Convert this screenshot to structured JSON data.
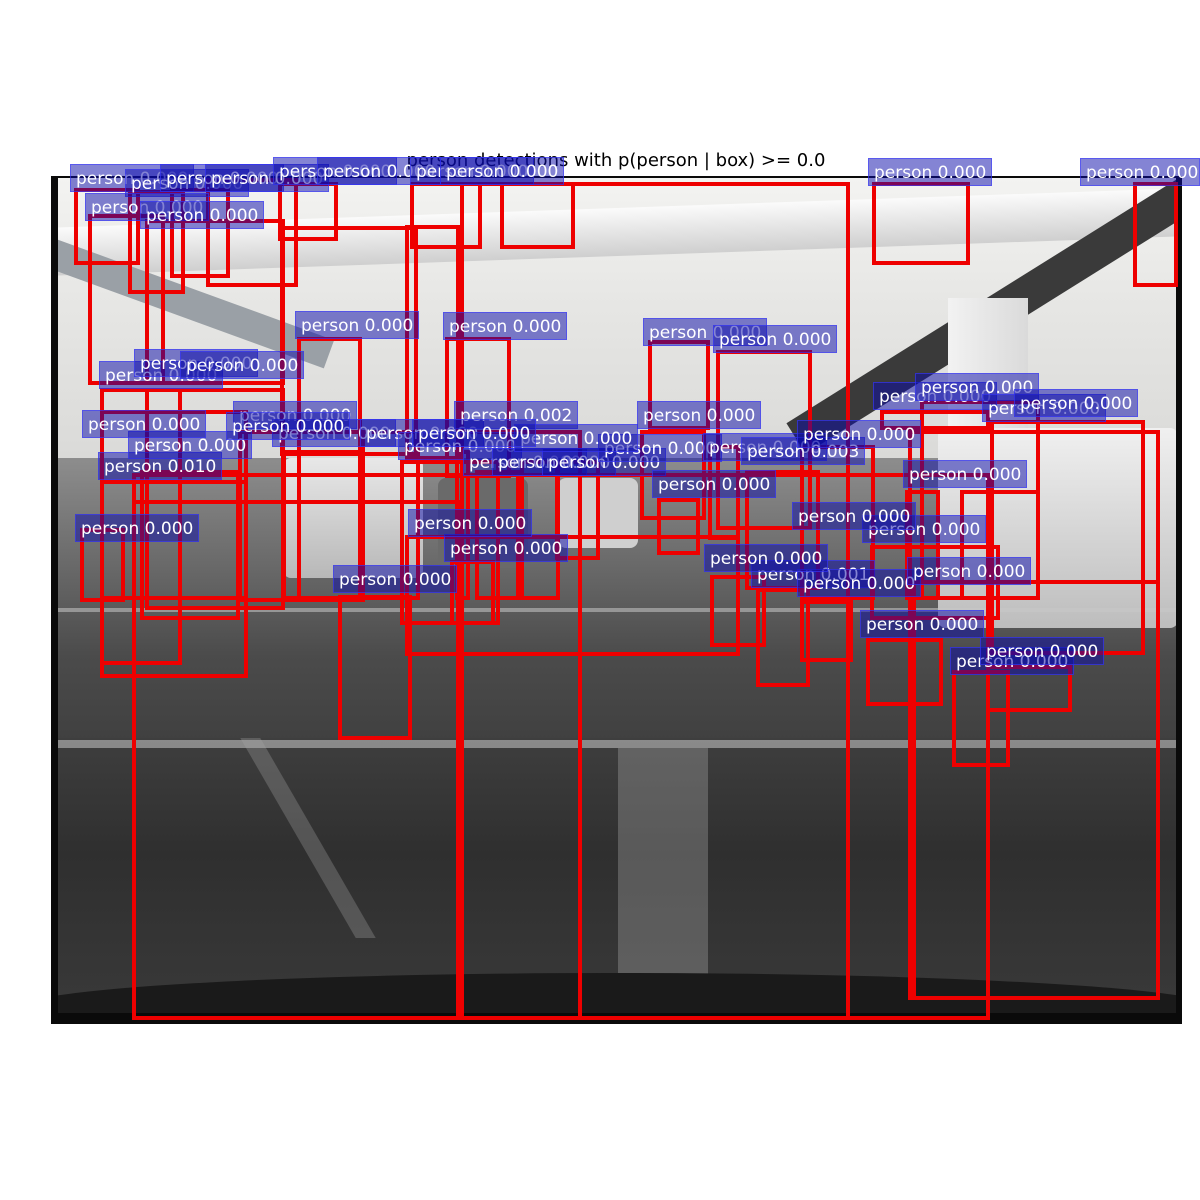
{
  "title": "person detections with p(person | box) >= 0.0",
  "colors": {
    "box": "#ee0000",
    "label_bg": "rgba(10,10,170,0.5)"
  },
  "detections": [
    {
      "label": "person 0.000"
    },
    {
      "label": "person 0.000"
    },
    {
      "label": "person 0.000"
    },
    {
      "label": "person 0.000"
    },
    {
      "label": "person 0.000"
    },
    {
      "label": "person 0.000"
    },
    {
      "label": "person 0.000"
    },
    {
      "label": "person 0.000"
    },
    {
      "label": "person 0.000"
    },
    {
      "label": "person 0.000"
    },
    {
      "label": "person 0.000"
    },
    {
      "label": "person 0.000"
    },
    {
      "label": "person 0.000"
    },
    {
      "label": "person 0.000"
    },
    {
      "label": "person 0.000"
    },
    {
      "label": "person 0.000"
    },
    {
      "label": "person 0.000"
    },
    {
      "label": "person 0.010"
    },
    {
      "label": "person 0.000"
    },
    {
      "label": "person 0.000"
    },
    {
      "label": "person 0.000"
    },
    {
      "label": "person 0.000"
    },
    {
      "label": "person 0.000"
    },
    {
      "label": "person 0.000"
    },
    {
      "label": "person 0.000"
    },
    {
      "label": "person 0.000"
    },
    {
      "label": "person 0.000"
    },
    {
      "label": "person 0.000"
    },
    {
      "label": "person 0.000"
    },
    {
      "label": "person 0.000"
    },
    {
      "label": "person 0.003"
    },
    {
      "label": "person 0.000"
    },
    {
      "label": "person 0.000"
    },
    {
      "label": "person 0.000"
    },
    {
      "label": "person 0.000"
    },
    {
      "label": "person 0.000"
    },
    {
      "label": "person 0.000"
    },
    {
      "label": "person 0.000"
    },
    {
      "label": "person 0.000"
    },
    {
      "label": "person 0.000"
    },
    {
      "label": "person 0.000"
    },
    {
      "label": "person 0.001"
    },
    {
      "label": "person 0.000"
    },
    {
      "label": "person 0.000"
    },
    {
      "label": "person 0.000"
    },
    {
      "label": "person 0.000"
    },
    {
      "label": "person 0.000"
    },
    {
      "label": "person 0.000"
    },
    {
      "label": "person 0.000"
    },
    {
      "label": "person 0.000"
    },
    {
      "label": "person 0.000"
    },
    {
      "label": "person 0.000"
    },
    {
      "label": "person 0.000"
    },
    {
      "label": "person 0.002"
    },
    {
      "label": "person 0.000"
    },
    {
      "label": "person 0.000"
    },
    {
      "label": "person 0.000"
    }
  ]
}
